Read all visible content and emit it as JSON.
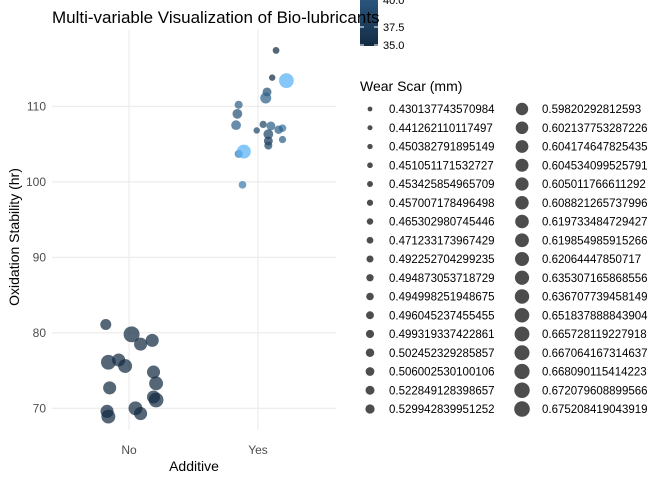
{
  "chart_data": {
    "type": "scatter",
    "title": "Multi-variable Visualization of Bio-lubricants",
    "xlabel": "Additive",
    "ylabel": "Oxidation Stability (hr)",
    "categories": [
      "No",
      "Yes"
    ],
    "ylim": [
      66,
      118
    ],
    "yticks": [
      70,
      80,
      90,
      100,
      110
    ],
    "grid": true,
    "points": [
      {
        "x": "No",
        "jitter": -0.18,
        "y": 81.1,
        "wear": 0.55,
        "temp": 35
      },
      {
        "x": "No",
        "jitter": 0.02,
        "y": 79.8,
        "wear": 0.67,
        "temp": 35
      },
      {
        "x": "No",
        "jitter": 0.18,
        "y": 79.0,
        "wear": 0.6,
        "temp": 35
      },
      {
        "x": "No",
        "jitter": 0.09,
        "y": 78.5,
        "wear": 0.6,
        "temp": 35
      },
      {
        "x": "No",
        "jitter": -0.16,
        "y": 76.1,
        "wear": 0.64,
        "temp": 35
      },
      {
        "x": "No",
        "jitter": -0.08,
        "y": 76.4,
        "wear": 0.6,
        "temp": 35
      },
      {
        "x": "No",
        "jitter": -0.03,
        "y": 75.6,
        "wear": 0.62,
        "temp": 35
      },
      {
        "x": "No",
        "jitter": 0.19,
        "y": 74.8,
        "wear": 0.6,
        "temp": 35
      },
      {
        "x": "No",
        "jitter": 0.21,
        "y": 73.3,
        "wear": 0.62,
        "temp": 35
      },
      {
        "x": "No",
        "jitter": -0.15,
        "y": 72.7,
        "wear": 0.6,
        "temp": 35
      },
      {
        "x": "No",
        "jitter": 0.19,
        "y": 71.5,
        "wear": 0.6,
        "temp": 35
      },
      {
        "x": "No",
        "jitter": 0.21,
        "y": 71.1,
        "wear": 0.64,
        "temp": 35
      },
      {
        "x": "No",
        "jitter": 0.05,
        "y": 70.0,
        "wear": 0.62,
        "temp": 35
      },
      {
        "x": "No",
        "jitter": -0.17,
        "y": 69.6,
        "wear": 0.6,
        "temp": 35
      },
      {
        "x": "No",
        "jitter": -0.16,
        "y": 68.9,
        "wear": 0.62,
        "temp": 35
      },
      {
        "x": "No",
        "jitter": 0.09,
        "y": 69.3,
        "wear": 0.6,
        "temp": 35
      },
      {
        "x": "Yes",
        "jitter": 0.14,
        "y": 117.4,
        "wear": 0.45,
        "temp": 35
      },
      {
        "x": "Yes",
        "jitter": 0.11,
        "y": 113.8,
        "wear": 0.44,
        "temp": 35
      },
      {
        "x": "Yes",
        "jitter": 0.22,
        "y": 113.4,
        "wear": 0.64,
        "temp": 60
      },
      {
        "x": "Yes",
        "jitter": 0.07,
        "y": 111.9,
        "wear": 0.5,
        "temp": 42
      },
      {
        "x": "Yes",
        "jitter": 0.06,
        "y": 111.1,
        "wear": 0.55,
        "temp": 45
      },
      {
        "x": "Yes",
        "jitter": -0.15,
        "y": 110.2,
        "wear": 0.48,
        "temp": 45
      },
      {
        "x": "Yes",
        "jitter": -0.16,
        "y": 109.0,
        "wear": 0.52,
        "temp": 42
      },
      {
        "x": "Yes",
        "jitter": 0.04,
        "y": 107.6,
        "wear": 0.46,
        "temp": 40
      },
      {
        "x": "Yes",
        "jitter": 0.1,
        "y": 107.4,
        "wear": 0.5,
        "temp": 45
      },
      {
        "x": "Yes",
        "jitter": -0.17,
        "y": 107.5,
        "wear": 0.52,
        "temp": 45
      },
      {
        "x": "Yes",
        "jitter": 0.19,
        "y": 107.1,
        "wear": 0.47,
        "temp": 48
      },
      {
        "x": "Yes",
        "jitter": 0.16,
        "y": 106.9,
        "wear": 0.49,
        "temp": 45
      },
      {
        "x": "Yes",
        "jitter": -0.01,
        "y": 106.8,
        "wear": 0.44,
        "temp": 40
      },
      {
        "x": "Yes",
        "jitter": 0.08,
        "y": 106.3,
        "wear": 0.52,
        "temp": 40
      },
      {
        "x": "Yes",
        "jitter": 0.08,
        "y": 105.4,
        "wear": 0.5,
        "temp": 38
      },
      {
        "x": "Yes",
        "jitter": 0.19,
        "y": 105.6,
        "wear": 0.46,
        "temp": 45
      },
      {
        "x": "Yes",
        "jitter": -0.15,
        "y": 103.7,
        "wear": 0.48,
        "temp": 50
      },
      {
        "x": "Yes",
        "jitter": 0.08,
        "y": 104.8,
        "wear": 0.48,
        "temp": 40
      },
      {
        "x": "Yes",
        "jitter": -0.11,
        "y": 104.0,
        "wear": 0.62,
        "temp": 60
      },
      {
        "x": "Yes",
        "jitter": -0.12,
        "y": 99.6,
        "wear": 0.47,
        "temp": 50
      }
    ],
    "color_legend": {
      "visible_ticks": [
        "37.5",
        "35.0"
      ],
      "low_color": "#132B43",
      "high_color": "#56B1F7"
    },
    "size_legend": {
      "title": "Wear Scar (mm)",
      "col1": [
        "0.430137743570984",
        "0.441262110117497",
        "0.450382791895149",
        "0.451051171532727",
        "0.453425854965709",
        "0.457007178496498",
        "0.465302980745446",
        "0.471233173967429",
        "0.492252704299235",
        "0.494873053718729",
        "0.494998251948675",
        "0.496045237455455",
        "0.499319337422861",
        "0.502452329285857",
        "0.506002530100106",
        "0.522849128398657",
        "0.529942839951252"
      ],
      "col2": [
        "0.59820292812593",
        "0.602137753287226",
        "0.604174647825435",
        "0.604534099525791",
        "0.605011766611292",
        "0.608821265737996",
        "0.619733484729427",
        "0.619854985915266",
        "0.62064447850717",
        "0.635307165868556",
        "0.636707739458149",
        "0.651837888843904",
        "0.665728119227918",
        "0.667064167314637",
        "0.668090115414223",
        "0.672079608899566",
        "0.675208419043919"
      ]
    }
  }
}
